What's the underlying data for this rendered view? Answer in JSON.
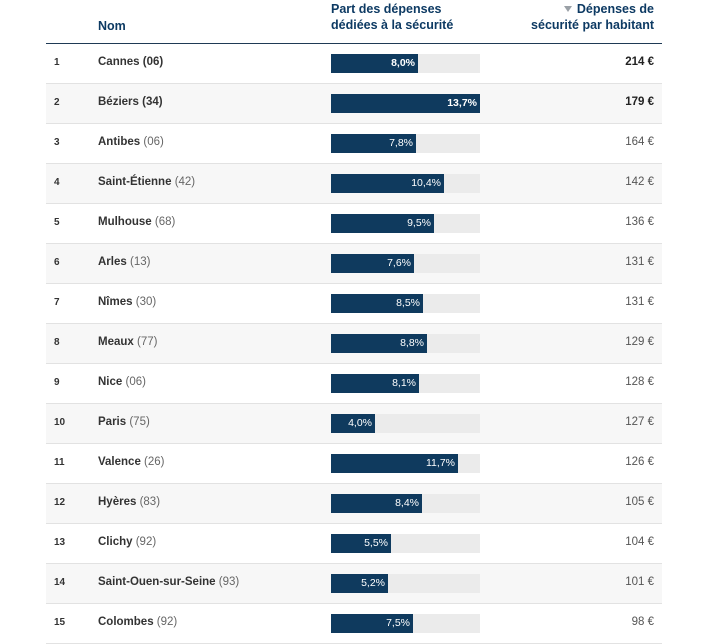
{
  "headers": {
    "nom": "Nom",
    "part_line1": "Part des dépenses",
    "part_line2": "dédiées à la sécurité",
    "dep_line1": "Dépenses de",
    "dep_line2": "sécurité par habitant"
  },
  "icons": {
    "sort": "sort-descending-icon"
  },
  "colors": {
    "header_text": "#0d3a63",
    "bar": "#0f3a5e",
    "bar_track": "#ebebeb"
  },
  "scale_max_pct": 13.7,
  "rows": [
    {
      "rank": "1",
      "city": "Cannes",
      "dept": "(06)",
      "pct": 8.0,
      "pct_label": "8,0%",
      "amount": "214 €",
      "highlight": true
    },
    {
      "rank": "2",
      "city": "Béziers",
      "dept": "(34)",
      "pct": 13.7,
      "pct_label": "13,7%",
      "amount": "179 €",
      "highlight": true
    },
    {
      "rank": "3",
      "city": "Antibes",
      "dept": "(06)",
      "pct": 7.8,
      "pct_label": "7,8%",
      "amount": "164 €",
      "highlight": false
    },
    {
      "rank": "4",
      "city": "Saint-Étienne",
      "dept": "(42)",
      "pct": 10.4,
      "pct_label": "10,4%",
      "amount": "142 €",
      "highlight": false
    },
    {
      "rank": "5",
      "city": "Mulhouse",
      "dept": "(68)",
      "pct": 9.5,
      "pct_label": "9,5%",
      "amount": "136 €",
      "highlight": false
    },
    {
      "rank": "6",
      "city": "Arles",
      "dept": "(13)",
      "pct": 7.6,
      "pct_label": "7,6%",
      "amount": "131 €",
      "highlight": false
    },
    {
      "rank": "7",
      "city": "Nîmes",
      "dept": "(30)",
      "pct": 8.5,
      "pct_label": "8,5%",
      "amount": "131 €",
      "highlight": false
    },
    {
      "rank": "8",
      "city": "Meaux",
      "dept": "(77)",
      "pct": 8.8,
      "pct_label": "8,8%",
      "amount": "129 €",
      "highlight": false
    },
    {
      "rank": "9",
      "city": "Nice",
      "dept": "(06)",
      "pct": 8.1,
      "pct_label": "8,1%",
      "amount": "128 €",
      "highlight": false
    },
    {
      "rank": "10",
      "city": "Paris",
      "dept": "(75)",
      "pct": 4.0,
      "pct_label": "4,0%",
      "amount": "127 €",
      "highlight": false
    },
    {
      "rank": "11",
      "city": "Valence",
      "dept": "(26)",
      "pct": 11.7,
      "pct_label": "11,7%",
      "amount": "126 €",
      "highlight": false
    },
    {
      "rank": "12",
      "city": "Hyères",
      "dept": "(83)",
      "pct": 8.4,
      "pct_label": "8,4%",
      "amount": "105 €",
      "highlight": false
    },
    {
      "rank": "13",
      "city": "Clichy",
      "dept": "(92)",
      "pct": 5.5,
      "pct_label": "5,5%",
      "amount": "104 €",
      "highlight": false
    },
    {
      "rank": "14",
      "city": "Saint-Ouen-sur-Seine",
      "dept": "(93)",
      "pct": 5.2,
      "pct_label": "5,2%",
      "amount": "101 €",
      "highlight": false
    },
    {
      "rank": "15",
      "city": "Colombes",
      "dept": "(92)",
      "pct": 7.5,
      "pct_label": "7,5%",
      "amount": "98 €",
      "highlight": false
    }
  ]
}
